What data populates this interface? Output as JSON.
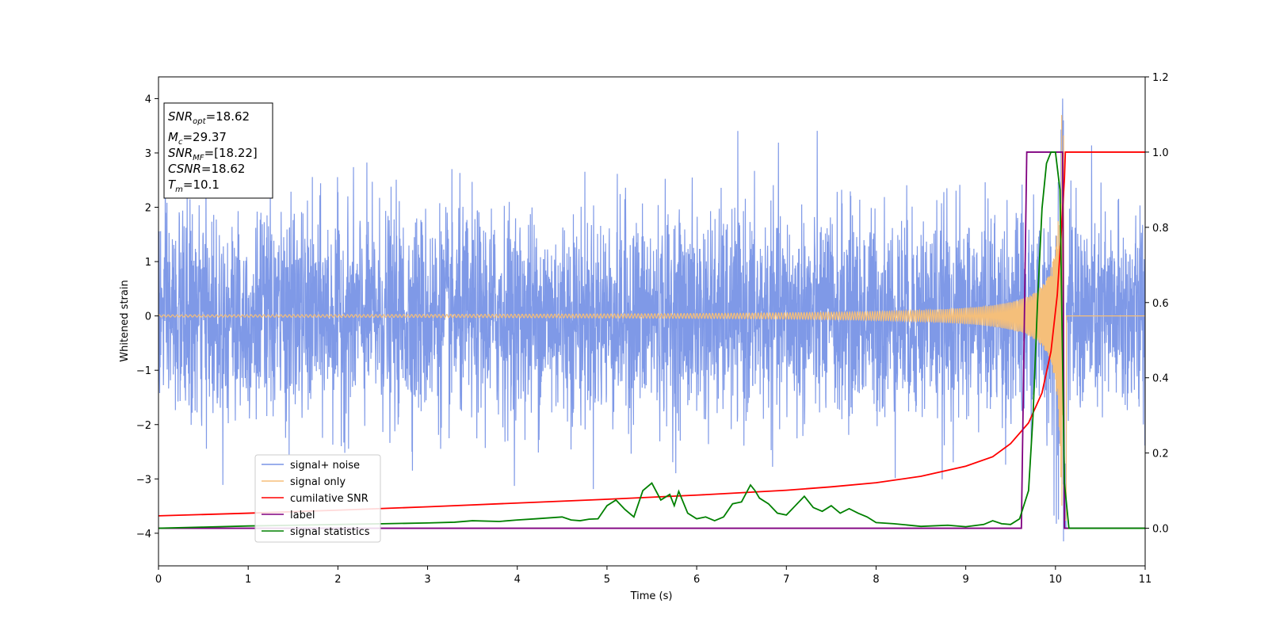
{
  "chart_data": {
    "type": "line",
    "xlabel": "Time (s)",
    "ylabel": "Whitened strain",
    "xlim": [
      0,
      11
    ],
    "ylim": [
      -4.6,
      4.4
    ],
    "y2lim": [
      -0.1,
      1.2
    ],
    "x_ticks": [
      "0",
      "1",
      "2",
      "3",
      "4",
      "5",
      "6",
      "7",
      "8",
      "9",
      "10",
      "11"
    ],
    "y_ticks": [
      "4",
      "3",
      "2",
      "1",
      "0",
      "−1",
      "−2",
      "−3",
      "−4"
    ],
    "y2_ticks": [
      "1.2",
      "1.0",
      "0.8",
      "0.6",
      "0.4",
      "0.2",
      "0.0"
    ],
    "legend_position": "lower-left",
    "annotation": {
      "snr_opt": {
        "symbol": "SNR",
        "sub": "opt",
        "value": "=18.62"
      },
      "mc": {
        "symbol": "M",
        "sub": "c",
        "value": "=29.37"
      },
      "snr_mf": {
        "symbol": "SNR",
        "sub": "MF",
        "value": "=[18.22]"
      },
      "csnr": {
        "symbol": "CSNR",
        "sub": "",
        "value": "=18.62"
      },
      "tm": {
        "symbol": "T",
        "sub": "m",
        "value": "=10.1"
      }
    },
    "series": [
      {
        "name": "signal+ noise",
        "color": "#7894e6",
        "axis": "left",
        "description_values": {
          "noise_sigma": 1.0,
          "peak_max": 4.0,
          "peak_min": -4.15,
          "peak_time": 10.08
        }
      },
      {
        "name": "signal only",
        "color": "#f5bf7a",
        "axis": "left",
        "chirp": {
          "start_amplitude": 0.02,
          "merger_time": 10.1,
          "peak_amplitude": 3.9,
          "min_amplitude": -4.15
        }
      },
      {
        "name": "cumilative SNR",
        "color": "#ff0000",
        "axis": "right",
        "x": [
          0,
          1,
          2,
          3,
          4,
          5,
          6,
          7,
          7.5,
          8,
          8.5,
          9,
          9.3,
          9.5,
          9.7,
          9.85,
          9.95,
          10.02,
          10.06,
          10.1,
          10.11,
          11
        ],
        "y": [
          0.033,
          0.04,
          0.048,
          0.057,
          0.067,
          0.077,
          0.088,
          0.101,
          0.11,
          0.121,
          0.138,
          0.165,
          0.19,
          0.225,
          0.28,
          0.36,
          0.47,
          0.62,
          0.77,
          0.93,
          1.0,
          1.0
        ]
      },
      {
        "name": "label",
        "color": "#800080",
        "axis": "right",
        "x": [
          0,
          9.62,
          9.68,
          10.08,
          10.1,
          11
        ],
        "y": [
          0,
          0,
          1,
          1,
          0,
          0
        ]
      },
      {
        "name": "signal statistics",
        "color": "#008000",
        "axis": "right",
        "x": [
          0,
          0.5,
          1,
          1.5,
          2,
          2.5,
          3,
          3.3,
          3.5,
          3.8,
          4,
          4.2,
          4.5,
          4.6,
          4.7,
          4.8,
          4.9,
          5,
          5.1,
          5.2,
          5.3,
          5.4,
          5.5,
          5.6,
          5.7,
          5.75,
          5.8,
          5.9,
          6,
          6.1,
          6.2,
          6.3,
          6.4,
          6.5,
          6.6,
          6.65,
          6.7,
          6.8,
          6.9,
          7,
          7.1,
          7.2,
          7.3,
          7.4,
          7.5,
          7.6,
          7.7,
          7.8,
          7.9,
          8,
          8.2,
          8.5,
          8.8,
          9,
          9.2,
          9.3,
          9.4,
          9.5,
          9.6,
          9.7,
          9.75,
          9.8,
          9.85,
          9.9,
          9.95,
          10.0,
          10.05,
          10.1,
          10.15,
          10.2,
          11
        ],
        "y": [
          0.0,
          0.003,
          0.006,
          0.008,
          0.01,
          0.012,
          0.014,
          0.016,
          0.02,
          0.018,
          0.022,
          0.025,
          0.03,
          0.022,
          0.02,
          0.024,
          0.025,
          0.06,
          0.075,
          0.05,
          0.03,
          0.1,
          0.12,
          0.075,
          0.09,
          0.06,
          0.098,
          0.04,
          0.025,
          0.03,
          0.02,
          0.03,
          0.065,
          0.07,
          0.115,
          0.1,
          0.08,
          0.065,
          0.04,
          0.035,
          0.06,
          0.085,
          0.055,
          0.045,
          0.06,
          0.04,
          0.052,
          0.04,
          0.03,
          0.015,
          0.012,
          0.005,
          0.008,
          0.004,
          0.01,
          0.02,
          0.012,
          0.01,
          0.025,
          0.1,
          0.3,
          0.6,
          0.85,
          0.97,
          1.0,
          1.0,
          0.9,
          0.12,
          0.0,
          0.0,
          0.0
        ]
      }
    ]
  }
}
